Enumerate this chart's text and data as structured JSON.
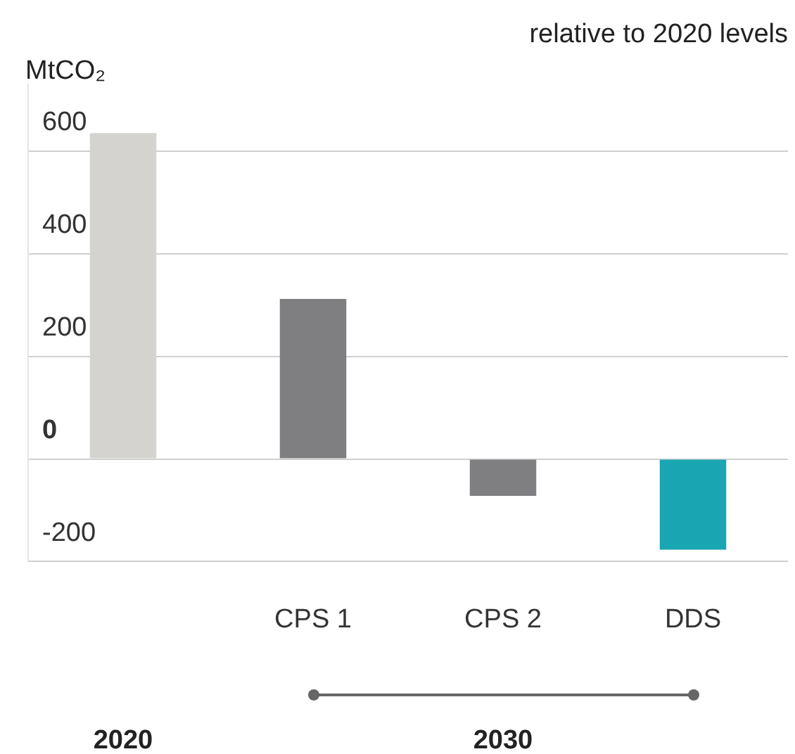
{
  "chart_data": {
    "type": "bar",
    "subtitle": "relative to 2020 levels",
    "ylabel": "MtCO₂",
    "categories": [
      null,
      "CPS 1",
      "CPS 2",
      "DDS"
    ],
    "values": [
      635,
      312,
      -72,
      -177
    ],
    "colors": [
      "#d5d3d0",
      "#7f7f82",
      "#7f7f82",
      "#1aa5b2"
    ],
    "ylim": [
      -200,
      730
    ],
    "yticks": [
      -200,
      0,
      200,
      400,
      600
    ],
    "grid": "y",
    "legend": false,
    "annotations": [
      "2020",
      "2030"
    ]
  }
}
